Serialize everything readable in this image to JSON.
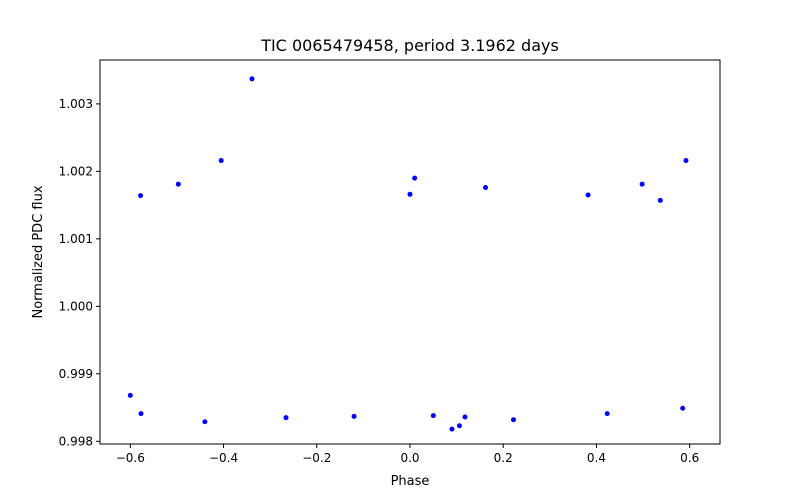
{
  "chart_data": {
    "type": "scatter",
    "title": "TIC 0065479458, period 3.1962 days",
    "xlabel": "Phase",
    "ylabel": "Normalized PDC flux",
    "xlim": [
      -0.665,
      0.665
    ],
    "ylim": [
      0.99796,
      1.00365
    ],
    "x_ticks": [
      -0.6,
      -0.4,
      -0.2,
      0.0,
      0.2,
      0.4,
      0.6
    ],
    "x_tick_labels": [
      "−0.6",
      "−0.4",
      "−0.2",
      "0.0",
      "0.2",
      "0.4",
      "0.6"
    ],
    "y_ticks": [
      0.998,
      0.999,
      1.0,
      1.001,
      1.002,
      1.003
    ],
    "y_tick_labels": [
      "0.998",
      "0.999",
      "1.000",
      "1.001",
      "1.002",
      "1.003"
    ],
    "grid": false,
    "marker_color": "#0000ff",
    "series": [
      {
        "points": [
          [
            -0.339,
            1.00337
          ],
          [
            -0.405,
            1.00216
          ],
          [
            0.592,
            1.00216
          ],
          [
            -0.578,
            1.00164
          ],
          [
            -0.497,
            1.00181
          ],
          [
            0.0,
            1.00166
          ],
          [
            0.01,
            1.0019
          ],
          [
            0.162,
            1.00176
          ],
          [
            0.382,
            1.00165
          ],
          [
            0.498,
            1.00181
          ],
          [
            0.537,
            1.00157
          ],
          [
            -0.12,
            0.99837
          ],
          [
            0.09,
            0.99818
          ],
          [
            0.118,
            0.99836
          ],
          [
            0.106,
            0.99823
          ],
          [
            -0.266,
            0.99835
          ],
          [
            0.222,
            0.99832
          ],
          [
            -0.44,
            0.99829
          ],
          [
            -0.577,
            0.99841
          ],
          [
            0.423,
            0.99841
          ],
          [
            0.585,
            0.99849
          ],
          [
            -0.6,
            0.99868
          ],
          [
            0.05,
            0.99838
          ]
        ]
      }
    ]
  }
}
